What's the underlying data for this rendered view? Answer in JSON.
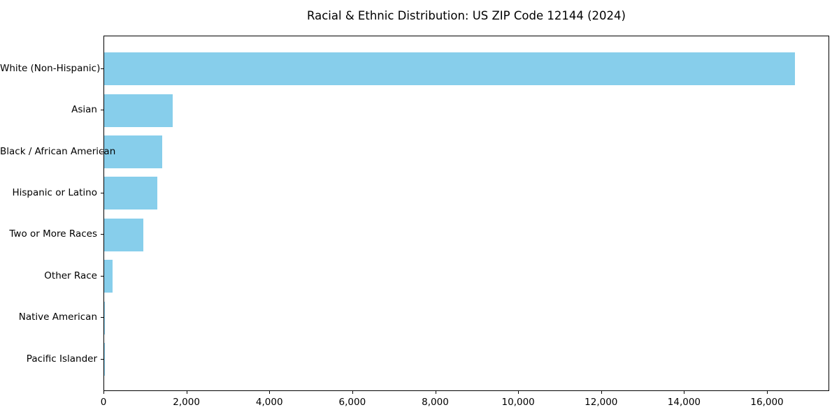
{
  "chart_data": {
    "type": "bar",
    "orientation": "horizontal",
    "title": "Racial & Ethnic Distribution: US ZIP Code 12144 (2024)",
    "categories": [
      "White (Non-Hispanic)",
      "Asian",
      "Black / African American",
      "Hispanic or Latino",
      "Two or More Races",
      "Other Race",
      "Native American",
      "Pacific Islander"
    ],
    "values": [
      16650,
      1650,
      1400,
      1280,
      950,
      200,
      20,
      6
    ],
    "xlabel": "",
    "ylabel": "",
    "xlim": [
      0,
      17500
    ],
    "xticks": [
      0,
      2000,
      4000,
      6000,
      8000,
      10000,
      12000,
      14000,
      16000
    ],
    "xtick_labels": [
      "0",
      "2,000",
      "4,000",
      "6,000",
      "8,000",
      "10,000",
      "12,000",
      "14,000",
      "16,000"
    ],
    "bar_color": "#87CEEB",
    "background_color": "#ffffff",
    "axis_color": "#000000",
    "grid": false,
    "legend": null
  }
}
